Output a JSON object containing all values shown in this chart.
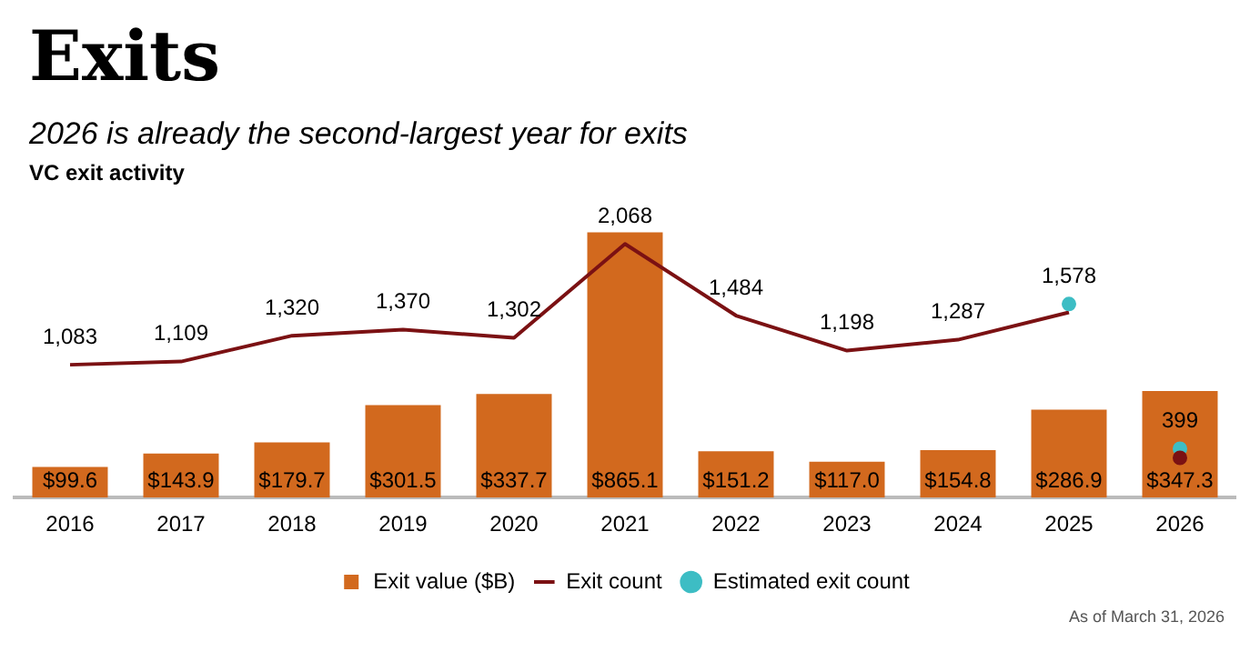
{
  "chart_data": {
    "type": "bar",
    "title": "Exits",
    "subtitle": "2026 is already the second-largest year for exits",
    "annotations": [
      "VC exit activity",
      "As of March 31, 2026"
    ],
    "categories": [
      "2016",
      "2017",
      "2018",
      "2019",
      "2020",
      "2021",
      "2022",
      "2023",
      "2024",
      "2025",
      "2026"
    ],
    "series": [
      {
        "name": "Exit value ($B)",
        "color": "#d2691e",
        "values": [
          99.6,
          143.9,
          179.7,
          301.5,
          337.7,
          865.1,
          151.2,
          117.0,
          154.8,
          286.9,
          347.3
        ],
        "value_labels": [
          "$99.6",
          "$143.9",
          "$179.7",
          "$301.5",
          "$337.7",
          "$865.1",
          "$151.2",
          "$117.0",
          "$154.8",
          "$286.9",
          "$347.3"
        ]
      },
      {
        "name": "Exit count",
        "type": "line",
        "axis": "y2",
        "color": "#7b1113",
        "marker": "none",
        "values": [
          1083,
          1109,
          1320,
          1370,
          1302,
          2068,
          1484,
          1198,
          1287,
          1510,
          null
        ],
        "value_labels": [
          "1,083",
          "1,109",
          "1,320",
          "1,370",
          "1,302",
          "2,068",
          "1,484",
          "1,198",
          "1,287",
          null,
          null
        ]
      },
      {
        "type": "scatter",
        "axis": "y2",
        "color": "#7b1113",
        "marker": "circle",
        "values": [
          null,
          null,
          null,
          null,
          null,
          null,
          null,
          null,
          null,
          null,
          324
        ]
      },
      {
        "name": "Estimated exit count",
        "type": "scatter",
        "axis": "y2",
        "color": "#3dbdc4",
        "marker": "circle",
        "values": [
          null,
          null,
          null,
          null,
          null,
          null,
          null,
          null,
          null,
          1578,
          399
        ],
        "value_labels": [
          null,
          null,
          null,
          null,
          null,
          null,
          null,
          null,
          null,
          "1,578",
          "399"
        ]
      }
    ],
    "tick_labels": "x",
    "grid": false,
    "legend": "bottom"
  }
}
